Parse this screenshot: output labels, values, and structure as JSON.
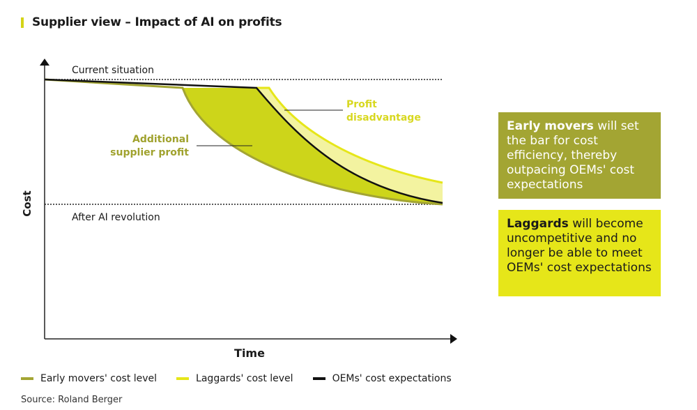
{
  "title": "Supplier view – Impact of AI on profits",
  "colors": {
    "accent": "#d4d417",
    "early_movers": "#a3a533",
    "laggards": "#e6e619",
    "oem": "#111111",
    "additional_profit_fill": "#cdd51a",
    "disadvantage_fill": "#f3f3a0",
    "label_olive": "#a0a22e",
    "label_yellow": "#d8d820"
  },
  "diagram": {
    "y_axis_label": "Cost",
    "x_axis_label": "Time",
    "current_level_label": "Current situation",
    "after_level_label": "After AI revolution",
    "additional_profit_label": [
      "Additional",
      "supplier profit"
    ],
    "profit_disadvantage_label": [
      "Profit",
      "disadvantage"
    ]
  },
  "boxes": {
    "early": {
      "bold": "Early movers",
      "rest": " will set the bar for cost efficiency, thereby outpacing OEMs' cost expectations"
    },
    "laggards": {
      "bold": "Laggards",
      "rest": " will become uncompetitive and no longer be able to meet OEMs' cost expectations"
    }
  },
  "legend": [
    {
      "label": "Early movers' cost level",
      "color": "#a3a533"
    },
    {
      "label": "Laggards' cost level",
      "color": "#e6e619"
    },
    {
      "label": "OEMs' cost expectations",
      "color": "#111111"
    }
  ],
  "source": "Source: Roland Berger"
}
